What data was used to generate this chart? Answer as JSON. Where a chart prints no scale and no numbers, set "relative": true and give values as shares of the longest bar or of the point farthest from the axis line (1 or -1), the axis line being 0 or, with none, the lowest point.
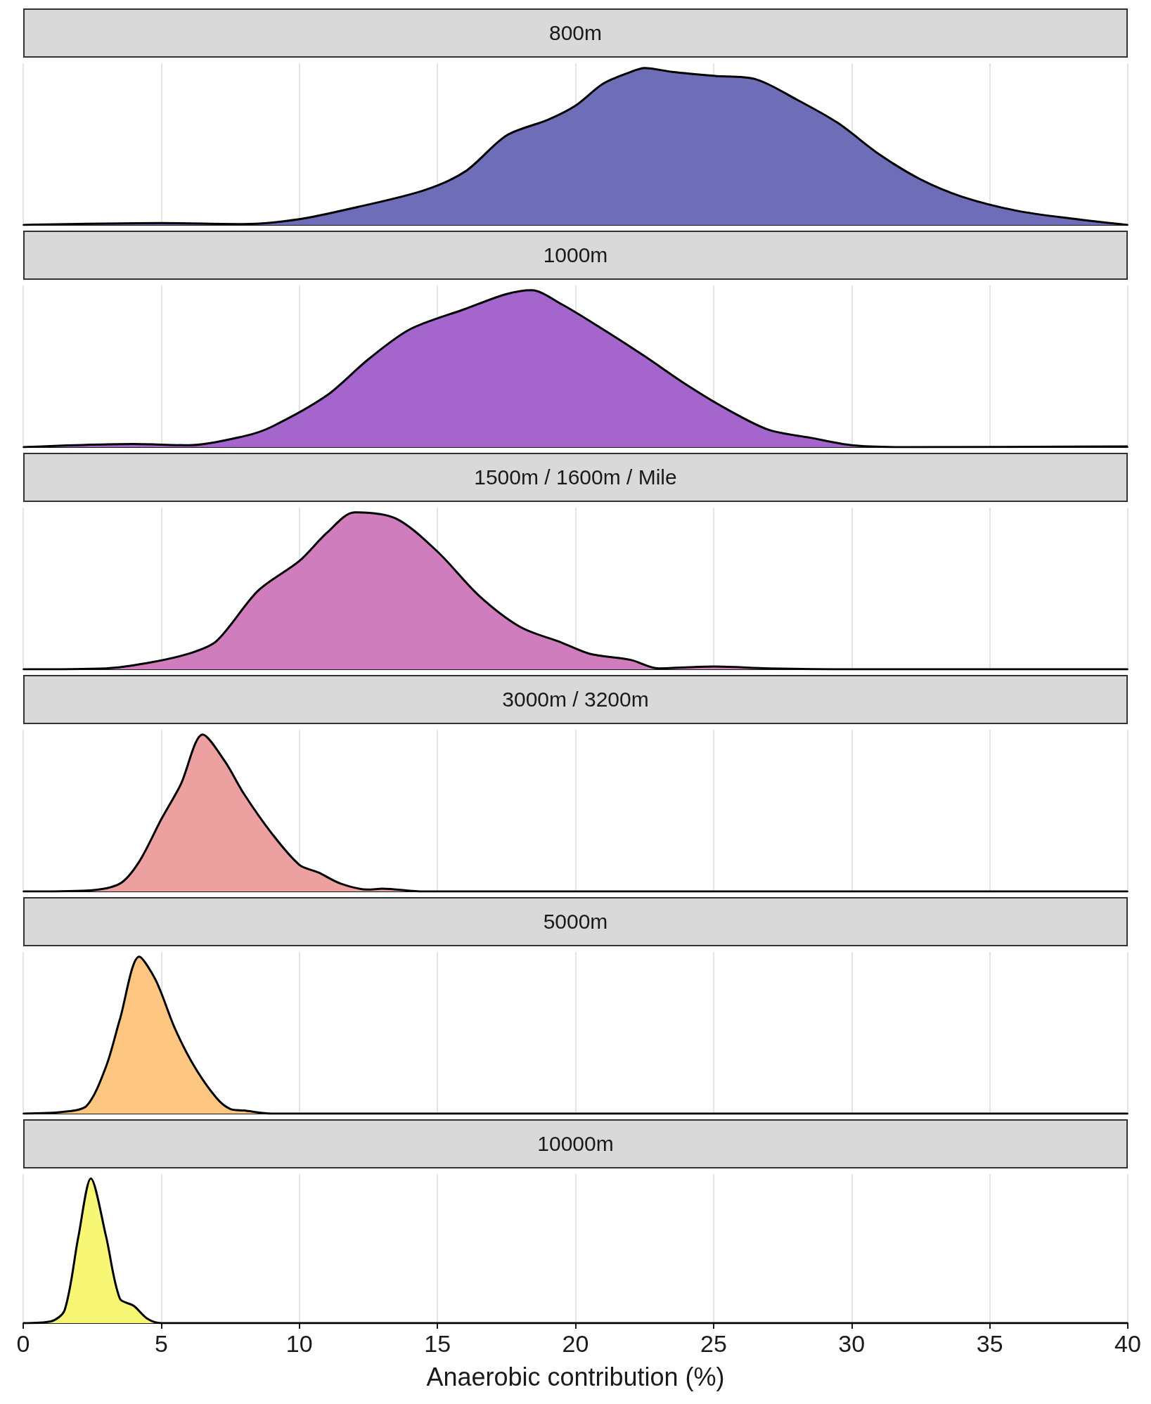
{
  "chart_data": [
    {
      "type": "area",
      "title": "800m",
      "relative": true,
      "xlim": [
        0,
        40
      ],
      "xticks": [
        0,
        5,
        10,
        15,
        20,
        25,
        30,
        35,
        40
      ],
      "grid": "x",
      "tick_labels": false,
      "line_style": "solid",
      "marker": "none",
      "x": [
        0,
        5,
        8,
        10,
        12,
        14.5,
        16,
        17.5,
        19,
        20,
        21,
        22,
        22.5,
        23.5,
        25,
        26.5,
        28,
        29.5,
        31,
        32.5,
        34,
        36,
        38,
        40
      ],
      "series": [
        {
          "color": "#6e6db7",
          "values": [
            0,
            0.012,
            0.006,
            0.037,
            0.11,
            0.22,
            0.34,
            0.57,
            0.67,
            0.76,
            0.9,
            0.975,
            1,
            0.975,
            0.95,
            0.93,
            0.8,
            0.65,
            0.45,
            0.29,
            0.18,
            0.09,
            0.04,
            0
          ]
        }
      ]
    },
    {
      "type": "area",
      "title": "1000m",
      "relative": true,
      "xlim": [
        0,
        40
      ],
      "xticks": [
        0,
        5,
        10,
        15,
        20,
        25,
        30,
        35,
        40
      ],
      "grid": "x",
      "tick_labels": false,
      "line_style": "solid",
      "marker": "none",
      "x": [
        0,
        4,
        6,
        8,
        9,
        11,
        12.5,
        14,
        16,
        17.5,
        18.4,
        19.5,
        21,
        22.5,
        24,
        25.5,
        27,
        28.5,
        30,
        32,
        40
      ],
      "series": [
        {
          "color": "#a466cc",
          "values": [
            0,
            0.02,
            0.012,
            0.07,
            0.13,
            0.33,
            0.56,
            0.75,
            0.88,
            0.975,
            1,
            0.91,
            0.75,
            0.58,
            0.4,
            0.24,
            0.11,
            0.06,
            0.012,
            0,
            0.005
          ]
        }
      ]
    },
    {
      "type": "area",
      "title": "1500m / 1600m / Mile",
      "relative": true,
      "xlim": [
        0,
        40
      ],
      "xticks": [
        0,
        5,
        10,
        15,
        20,
        25,
        30,
        35,
        40
      ],
      "grid": "x",
      "tick_labels": false,
      "line_style": "solid",
      "marker": "none",
      "x": [
        0,
        3,
        4.5,
        6,
        7,
        8.5,
        10,
        11,
        12,
        13.5,
        15,
        16.5,
        18,
        19.5,
        20.5,
        22,
        23,
        25,
        27,
        30,
        40
      ],
      "series": [
        {
          "color": "#d07dbd",
          "values": [
            0,
            0.006,
            0.04,
            0.1,
            0.18,
            0.5,
            0.69,
            0.87,
            1,
            0.96,
            0.75,
            0.47,
            0.27,
            0.17,
            0.1,
            0.06,
            0.006,
            0.018,
            0.006,
            0,
            0
          ]
        }
      ]
    },
    {
      "type": "area",
      "title": "3000m / 3200m",
      "relative": true,
      "xlim": [
        0,
        40
      ],
      "xticks": [
        0,
        5,
        10,
        15,
        20,
        25,
        30,
        35,
        40
      ],
      "grid": "x",
      "tick_labels": false,
      "line_style": "solid",
      "marker": "none",
      "x": [
        0,
        2.3,
        3.5,
        4.2,
        5,
        5.7,
        6.5,
        7.3,
        8,
        9,
        10,
        10.7,
        11.5,
        12.5,
        13,
        14.5,
        40
      ],
      "series": [
        {
          "color": "#eca0a0",
          "values": [
            0,
            0.006,
            0.05,
            0.19,
            0.46,
            0.68,
            1,
            0.83,
            0.62,
            0.37,
            0.17,
            0.12,
            0.05,
            0.012,
            0.018,
            0,
            0
          ]
        }
      ]
    },
    {
      "type": "area",
      "title": "5000m",
      "relative": true,
      "xlim": [
        0,
        40
      ],
      "xticks": [
        0,
        5,
        10,
        15,
        20,
        25,
        30,
        35,
        40
      ],
      "grid": "x",
      "tick_labels": false,
      "line_style": "solid",
      "marker": "none",
      "x": [
        0,
        1.5,
        2.3,
        3,
        3.5,
        4.2,
        4.8,
        5.5,
        6.2,
        7,
        7.5,
        8,
        9,
        40
      ],
      "series": [
        {
          "color": "#fdc782",
          "values": [
            0,
            0.012,
            0.05,
            0.3,
            0.6,
            1,
            0.85,
            0.54,
            0.3,
            0.1,
            0.03,
            0.02,
            0,
            0
          ]
        }
      ]
    },
    {
      "type": "area",
      "title": "10000m",
      "xlabel": "Anaerobic contribution (%)",
      "relative": true,
      "xlim": [
        0,
        40
      ],
      "xticks": [
        0,
        5,
        10,
        15,
        20,
        25,
        30,
        35,
        40
      ],
      "grid": "x",
      "tick_labels": "x",
      "line_style": "solid",
      "marker": "none",
      "x": [
        0,
        1,
        1.5,
        2,
        2.45,
        3,
        3.5,
        4,
        4.5,
        5,
        40
      ],
      "series": [
        {
          "color": "#f7f775",
          "values": [
            0,
            0.012,
            0.09,
            0.6,
            1,
            0.6,
            0.17,
            0.12,
            0.03,
            0,
            0
          ]
        }
      ]
    }
  ]
}
